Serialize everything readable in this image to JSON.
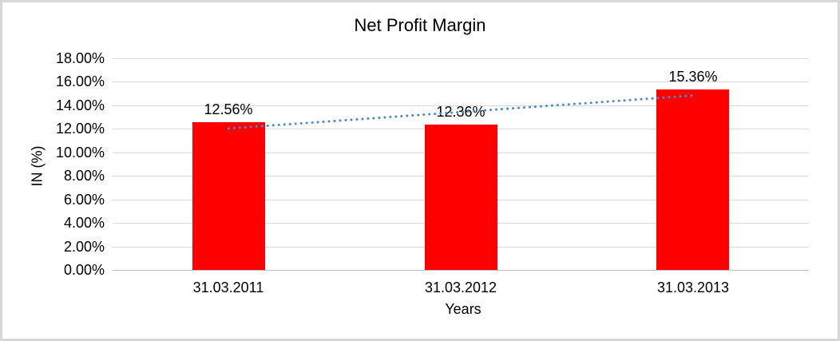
{
  "chart_data": {
    "type": "bar",
    "title": "Net Profit Margin",
    "xlabel": "Years",
    "ylabel": "IN (%)",
    "categories": [
      "31.03.2011",
      "31.03.2012",
      "31.03.2013"
    ],
    "values": [
      12.56,
      12.36,
      15.36
    ],
    "data_labels": [
      "12.56%",
      "12.36%",
      "15.36%"
    ],
    "ylim": [
      0,
      18
    ],
    "ytick_values": [
      0,
      2,
      4,
      6,
      8,
      10,
      12,
      14,
      16,
      18
    ],
    "ytick_labels": [
      "0.00%",
      "2.00%",
      "4.00%",
      "6.00%",
      "8.00%",
      "10.00%",
      "12.00%",
      "14.00%",
      "16.00%",
      "18.00%"
    ],
    "grid": true,
    "legend": "none",
    "trendline": {
      "type": "linear",
      "style": "dotted",
      "start_value": 12.03,
      "end_value": 14.83
    },
    "colors": {
      "bar": "#ff0000",
      "trendline": "#4e8bc8",
      "gridline": "#d9d9d9",
      "axis_line": "#bfbfbf",
      "text": "#000000",
      "frame_border": "#d7d7d7",
      "background": "#ffffff"
    }
  }
}
